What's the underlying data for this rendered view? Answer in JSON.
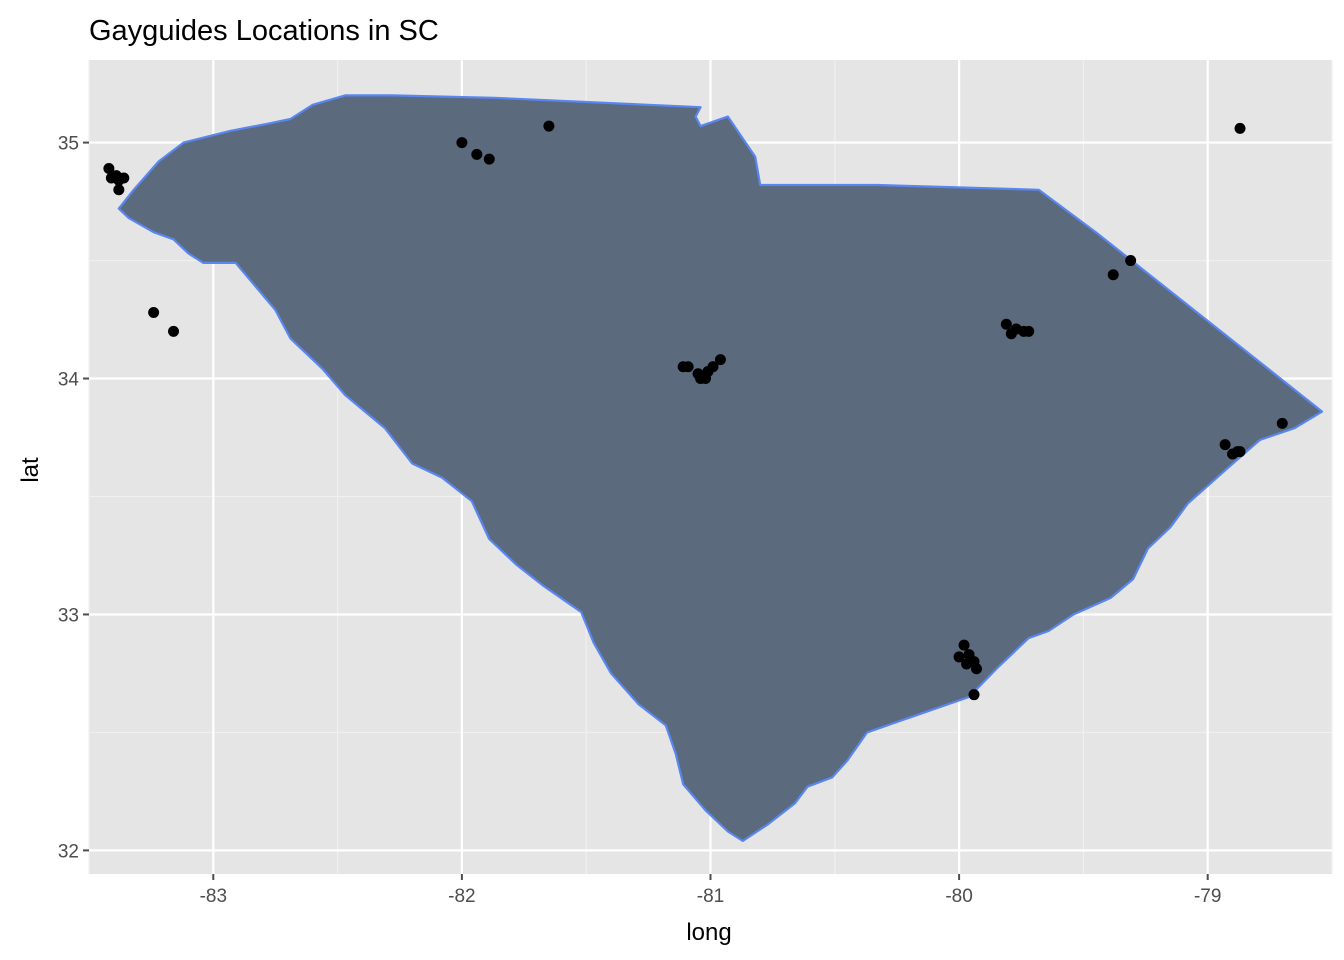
{
  "title": "Gayguides Locations in SC",
  "colors": {
    "panel": "#e5e5e5",
    "grid_major": "#ffffff",
    "grid_minor": "#f0f0f0",
    "state_fill": "#5b6a7c",
    "state_outline": "#5a86f0",
    "points": "#000000",
    "ticks": "#4d4d4d"
  },
  "chart_data": {
    "type": "scatter",
    "title": "Gayguides Locations in SC",
    "xlabel": "long",
    "ylabel": "lat",
    "xlim": [
      -83.5,
      -78.5
    ],
    "ylim": [
      31.9,
      35.35
    ],
    "x_ticks": [
      -83,
      -82,
      -81,
      -80,
      -79
    ],
    "x_tick_labels": [
      "-83",
      "-82",
      "-81",
      "-80",
      "-79"
    ],
    "y_ticks": [
      32,
      33,
      34,
      35
    ],
    "y_tick_labels": [
      "32",
      "33",
      "34",
      "35"
    ],
    "grid": true,
    "background_layer": "South Carolina state outline (filled polygon)",
    "points": [
      {
        "x": -83.42,
        "y": 34.89
      },
      {
        "x": -83.41,
        "y": 34.85
      },
      {
        "x": -83.39,
        "y": 34.86
      },
      {
        "x": -83.38,
        "y": 34.84
      },
      {
        "x": -83.36,
        "y": 34.85
      },
      {
        "x": -83.38,
        "y": 34.8
      },
      {
        "x": -83.24,
        "y": 34.28
      },
      {
        "x": -83.16,
        "y": 34.2
      },
      {
        "x": -82.0,
        "y": 35.0
      },
      {
        "x": -81.94,
        "y": 34.95
      },
      {
        "x": -81.89,
        "y": 34.93
      },
      {
        "x": -81.65,
        "y": 35.07
      },
      {
        "x": -81.11,
        "y": 34.05
      },
      {
        "x": -81.09,
        "y": 34.05
      },
      {
        "x": -81.04,
        "y": 34.0
      },
      {
        "x": -81.03,
        "y": 34.01
      },
      {
        "x": -81.02,
        "y": 34.0
      },
      {
        "x": -81.01,
        "y": 34.03
      },
      {
        "x": -80.99,
        "y": 34.05
      },
      {
        "x": -80.96,
        "y": 34.08
      },
      {
        "x": -81.05,
        "y": 34.02
      },
      {
        "x": -80.0,
        "y": 32.82
      },
      {
        "x": -79.98,
        "y": 32.87
      },
      {
        "x": -79.97,
        "y": 32.79
      },
      {
        "x": -79.96,
        "y": 32.83
      },
      {
        "x": -79.94,
        "y": 32.8
      },
      {
        "x": -79.93,
        "y": 32.77
      },
      {
        "x": -79.94,
        "y": 32.66
      },
      {
        "x": -79.81,
        "y": 34.23
      },
      {
        "x": -79.79,
        "y": 34.19
      },
      {
        "x": -79.77,
        "y": 34.21
      },
      {
        "x": -79.74,
        "y": 34.2
      },
      {
        "x": -79.72,
        "y": 34.2
      },
      {
        "x": -79.38,
        "y": 34.44
      },
      {
        "x": -79.31,
        "y": 34.5
      },
      {
        "x": -78.93,
        "y": 33.72
      },
      {
        "x": -78.9,
        "y": 33.68
      },
      {
        "x": -78.88,
        "y": 33.69
      },
      {
        "x": -78.87,
        "y": 33.69
      },
      {
        "x": -78.7,
        "y": 33.81
      },
      {
        "x": -78.87,
        "y": 35.06
      }
    ],
    "outline": [
      [
        -83.38,
        34.72
      ],
      [
        -83.32,
        34.8
      ],
      [
        -83.22,
        34.92
      ],
      [
        -83.12,
        35.0
      ],
      [
        -82.93,
        35.05
      ],
      [
        -82.78,
        35.08
      ],
      [
        -82.69,
        35.1
      ],
      [
        -82.6,
        35.16
      ],
      [
        -82.47,
        35.2
      ],
      [
        -82.28,
        35.2
      ],
      [
        -81.87,
        35.19
      ],
      [
        -81.04,
        35.15
      ],
      [
        -81.06,
        35.11
      ],
      [
        -81.04,
        35.07
      ],
      [
        -80.93,
        35.11
      ],
      [
        -80.82,
        34.94
      ],
      [
        -80.8,
        34.82
      ],
      [
        -80.56,
        34.82
      ],
      [
        -80.33,
        34.82
      ],
      [
        -79.68,
        34.8
      ],
      [
        -79.45,
        34.62
      ],
      [
        -78.54,
        33.86
      ],
      [
        -78.65,
        33.79
      ],
      [
        -78.79,
        33.74
      ],
      [
        -78.92,
        33.62
      ],
      [
        -79.08,
        33.47
      ],
      [
        -79.15,
        33.37
      ],
      [
        -79.24,
        33.28
      ],
      [
        -79.3,
        33.15
      ],
      [
        -79.39,
        33.07
      ],
      [
        -79.54,
        33.0
      ],
      [
        -79.64,
        32.93
      ],
      [
        -79.72,
        32.9
      ],
      [
        -79.84,
        32.78
      ],
      [
        -79.96,
        32.65
      ],
      [
        -80.18,
        32.57
      ],
      [
        -80.37,
        32.5
      ],
      [
        -80.45,
        32.38
      ],
      [
        -80.51,
        32.31
      ],
      [
        -80.61,
        32.27
      ],
      [
        -80.66,
        32.2
      ],
      [
        -80.77,
        32.11
      ],
      [
        -80.87,
        32.04
      ],
      [
        -80.93,
        32.08
      ],
      [
        -81.02,
        32.17
      ],
      [
        -81.11,
        32.28
      ],
      [
        -81.14,
        32.41
      ],
      [
        -81.18,
        32.53
      ],
      [
        -81.29,
        32.62
      ],
      [
        -81.4,
        32.75
      ],
      [
        -81.47,
        32.88
      ],
      [
        -81.52,
        33.01
      ],
      [
        -81.67,
        33.12
      ],
      [
        -81.78,
        33.21
      ],
      [
        -81.89,
        33.32
      ],
      [
        -81.96,
        33.48
      ],
      [
        -82.08,
        33.58
      ],
      [
        -82.2,
        33.64
      ],
      [
        -82.31,
        33.79
      ],
      [
        -82.47,
        33.93
      ],
      [
        -82.56,
        34.04
      ],
      [
        -82.69,
        34.17
      ],
      [
        -82.75,
        34.29
      ],
      [
        -82.83,
        34.39
      ],
      [
        -82.91,
        34.49
      ],
      [
        -83.04,
        34.49
      ],
      [
        -83.1,
        34.53
      ],
      [
        -83.16,
        34.59
      ],
      [
        -83.24,
        34.62
      ],
      [
        -83.34,
        34.68
      ],
      [
        -83.38,
        34.72
      ]
    ]
  }
}
